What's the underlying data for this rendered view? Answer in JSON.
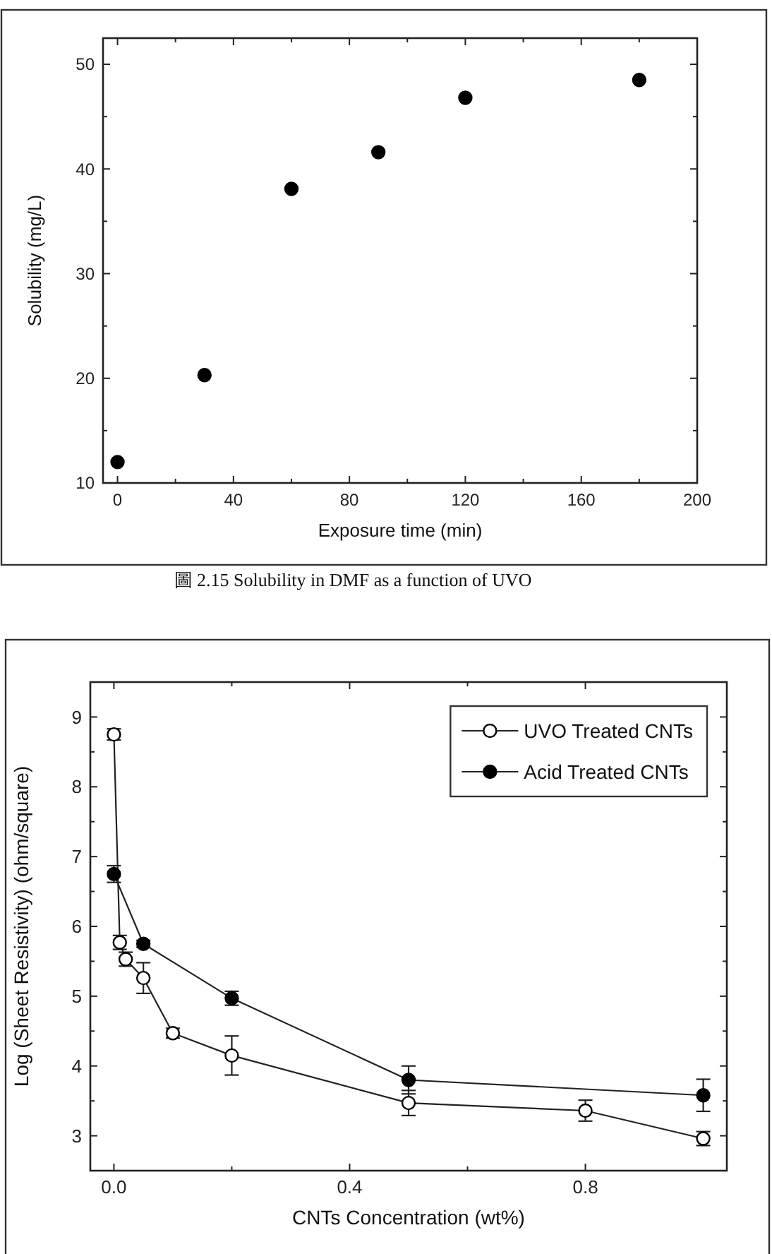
{
  "chart_data": [
    {
      "type": "scatter",
      "xlabel": "Exposure time (min)",
      "ylabel": "Solubility (mg/L)",
      "x": [
        0,
        30,
        60,
        90,
        120,
        180
      ],
      "values": [
        12,
        20.3,
        38.1,
        41.6,
        46.8,
        48.5
      ],
      "color": "#000000",
      "marker": "circle",
      "xlim": [
        -5,
        200
      ],
      "ylim": [
        10,
        52.5
      ],
      "xticks": [
        0,
        40,
        80,
        120,
        160,
        200
      ],
      "yticks": [
        10,
        20,
        30,
        40,
        50
      ],
      "annotations": [
        "圖 2.15  Solubility in DMF as a function of UVO"
      ]
    },
    {
      "type": "line",
      "xlabel": "CNTs Concentration (wt%)",
      "ylabel": "Log (Sheet Resistivity) (ohm/square)",
      "marker": "circle",
      "line_style": "solid",
      "legend": "top right",
      "xlim": [
        -0.04,
        1.04
      ],
      "ylim": [
        2.5,
        9.5
      ],
      "xticks": [
        {
          "value": 0,
          "label": "0.0"
        },
        0.4,
        0.8
      ],
      "yticks": [
        3,
        4,
        5,
        6,
        7,
        8,
        9
      ],
      "series": [
        {
          "name": "UVO Treated CNTs",
          "color": "#ffffff",
          "x": [
            0,
            0.01,
            0.02,
            0.05,
            0.1,
            0.2,
            0.5,
            0.8,
            1.0
          ],
          "values": [
            8.75,
            5.77,
            5.53,
            5.26,
            4.47,
            4.15,
            3.47,
            3.36,
            2.96
          ],
          "errors": [
            0.08,
            0.1,
            0.1,
            0.22,
            0.07,
            0.28,
            0.18,
            0.15,
            0.1
          ]
        },
        {
          "name": "Acid Treated CNTs",
          "color": "#000000",
          "x": [
            0,
            0.05,
            0.2,
            0.5,
            1.0
          ],
          "values": [
            6.75,
            5.75,
            4.97,
            3.8,
            3.58
          ],
          "errors": [
            0.12,
            0.05,
            0.1,
            0.2,
            0.23
          ]
        }
      ]
    }
  ]
}
